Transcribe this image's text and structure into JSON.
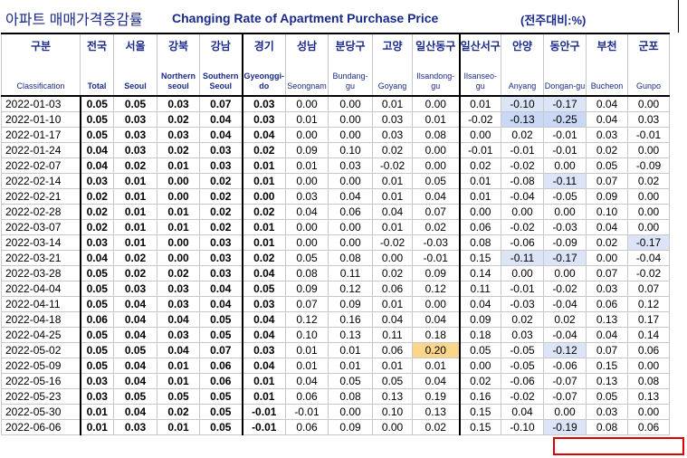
{
  "title": {
    "korean": "아파트 매매가격증감률",
    "english": "Changing Rate of Apartment Purchase Price",
    "unit": "(전주대비:%)"
  },
  "columns": [
    {
      "ko": "구분",
      "en": "Classification"
    },
    {
      "ko": "전국",
      "en": "Total"
    },
    {
      "ko": "서울",
      "en": "Seoul"
    },
    {
      "ko": "강북",
      "en": "Northern seoul"
    },
    {
      "ko": "강남",
      "en": "Southern Seoul"
    },
    {
      "ko": "경기",
      "en": "Gyeonggi-do"
    },
    {
      "ko": "성남",
      "en": "Seongnam"
    },
    {
      "ko": "분당구",
      "en": "Bundang-gu"
    },
    {
      "ko": "고양",
      "en": "Goyang"
    },
    {
      "ko": "일산동구",
      "en": "Ilsandong-gu"
    },
    {
      "ko": "일산서구",
      "en": "Ilsanseo-gu"
    },
    {
      "ko": "안양",
      "en": "Anyang"
    },
    {
      "ko": "동안구",
      "en": "Dongan-gu"
    },
    {
      "ko": "부천",
      "en": "Bucheon"
    },
    {
      "ko": "군포",
      "en": "Gunpo"
    }
  ],
  "rows": [
    {
      "date": "2022-01-03",
      "v": [
        "0.05",
        "0.05",
        "0.03",
        "0.07",
        "0.03",
        "0.00",
        "0.00",
        "0.01",
        "0.00",
        "0.01",
        "-0.10",
        "-0.17",
        "0.04",
        "0.00"
      ]
    },
    {
      "date": "2022-01-10",
      "v": [
        "0.05",
        "0.03",
        "0.02",
        "0.04",
        "0.03",
        "0.01",
        "0.00",
        "0.03",
        "0.01",
        "-0.02",
        "-0.13",
        "-0.25",
        "0.04",
        "0.03"
      ]
    },
    {
      "date": "2022-01-17",
      "v": [
        "0.05",
        "0.03",
        "0.03",
        "0.04",
        "0.04",
        "0.00",
        "0.00",
        "0.03",
        "0.08",
        "0.00",
        "0.02",
        "-0.01",
        "0.03",
        "-0.01"
      ]
    },
    {
      "date": "2022-01-24",
      "v": [
        "0.04",
        "0.03",
        "0.02",
        "0.03",
        "0.02",
        "0.09",
        "0.10",
        "0.02",
        "0.00",
        "-0.01",
        "-0.01",
        "-0.01",
        "0.02",
        "0.00"
      ]
    },
    {
      "date": "2022-02-07",
      "v": [
        "0.04",
        "0.02",
        "0.01",
        "0.03",
        "0.01",
        "0.01",
        "0.03",
        "-0.02",
        "0.00",
        "0.02",
        "-0.02",
        "0.00",
        "0.05",
        "-0.09"
      ]
    },
    {
      "date": "2022-02-14",
      "v": [
        "0.03",
        "0.01",
        "0.00",
        "0.02",
        "0.01",
        "0.00",
        "0.00",
        "0.01",
        "0.05",
        "0.01",
        "-0.08",
        "-0.11",
        "0.07",
        "0.02"
      ]
    },
    {
      "date": "2022-02-21",
      "v": [
        "0.02",
        "0.01",
        "0.00",
        "0.02",
        "0.00",
        "0.03",
        "0.04",
        "0.01",
        "0.04",
        "0.01",
        "-0.04",
        "-0.05",
        "0.09",
        "0.00"
      ]
    },
    {
      "date": "2022-02-28",
      "v": [
        "0.02",
        "0.01",
        "0.01",
        "0.02",
        "0.02",
        "0.04",
        "0.06",
        "0.04",
        "0.07",
        "0.00",
        "0.00",
        "0.00",
        "0.10",
        "0.00"
      ]
    },
    {
      "date": "2022-03-07",
      "v": [
        "0.02",
        "0.01",
        "0.01",
        "0.02",
        "0.01",
        "0.00",
        "0.00",
        "0.01",
        "0.02",
        "0.06",
        "-0.02",
        "-0.03",
        "0.04",
        "0.00"
      ]
    },
    {
      "date": "2022-03-14",
      "v": [
        "0.03",
        "0.01",
        "0.00",
        "0.03",
        "0.01",
        "0.00",
        "0.00",
        "-0.02",
        "-0.03",
        "0.08",
        "-0.06",
        "-0.09",
        "0.02",
        "-0.17"
      ]
    },
    {
      "date": "2022-03-21",
      "v": [
        "0.04",
        "0.02",
        "0.00",
        "0.03",
        "0.02",
        "0.05",
        "0.08",
        "0.00",
        "-0.01",
        "0.15",
        "-0.11",
        "-0.17",
        "0.00",
        "-0.04"
      ]
    },
    {
      "date": "2022-03-28",
      "v": [
        "0.05",
        "0.02",
        "0.02",
        "0.03",
        "0.04",
        "0.08",
        "0.11",
        "0.02",
        "0.09",
        "0.14",
        "0.00",
        "0.00",
        "0.07",
        "-0.02"
      ]
    },
    {
      "date": "2022-04-04",
      "v": [
        "0.05",
        "0.03",
        "0.03",
        "0.04",
        "0.05",
        "0.09",
        "0.12",
        "0.06",
        "0.12",
        "0.11",
        "-0.01",
        "-0.02",
        "0.03",
        "0.07"
      ]
    },
    {
      "date": "2022-04-11",
      "v": [
        "0.05",
        "0.04",
        "0.03",
        "0.04",
        "0.03",
        "0.07",
        "0.09",
        "0.01",
        "0.00",
        "0.04",
        "-0.03",
        "-0.04",
        "0.06",
        "0.12"
      ]
    },
    {
      "date": "2022-04-18",
      "v": [
        "0.06",
        "0.04",
        "0.04",
        "0.05",
        "0.04",
        "0.12",
        "0.16",
        "0.04",
        "0.04",
        "0.09",
        "0.02",
        "0.02",
        "0.13",
        "0.17"
      ]
    },
    {
      "date": "2022-04-25",
      "v": [
        "0.05",
        "0.04",
        "0.03",
        "0.05",
        "0.04",
        "0.10",
        "0.13",
        "0.11",
        "0.18",
        "0.18",
        "0.03",
        "-0.04",
        "0.04",
        "0.14"
      ]
    },
    {
      "date": "2022-05-02",
      "v": [
        "0.05",
        "0.05",
        "0.04",
        "0.07",
        "0.03",
        "0.01",
        "0.01",
        "0.06",
        "0.20",
        "0.05",
        "-0.05",
        "-0.12",
        "0.07",
        "0.06"
      ]
    },
    {
      "date": "2022-05-09",
      "v": [
        "0.05",
        "0.04",
        "0.01",
        "0.06",
        "0.04",
        "0.01",
        "0.01",
        "0.01",
        "0.01",
        "0.00",
        "-0.05",
        "-0.06",
        "0.15",
        "0.00"
      ]
    },
    {
      "date": "2022-05-16",
      "v": [
        "0.03",
        "0.04",
        "0.01",
        "0.06",
        "0.01",
        "0.04",
        "0.05",
        "0.05",
        "0.04",
        "0.02",
        "-0.06",
        "-0.07",
        "0.13",
        "0.08"
      ]
    },
    {
      "date": "2022-05-23",
      "v": [
        "0.03",
        "0.05",
        "0.05",
        "0.05",
        "0.01",
        "0.06",
        "0.08",
        "0.13",
        "0.19",
        "0.16",
        "-0.02",
        "-0.07",
        "0.05",
        "0.13"
      ]
    },
    {
      "date": "2022-05-30",
      "v": [
        "0.01",
        "0.04",
        "0.02",
        "0.05",
        "-0.01",
        "-0.01",
        "0.00",
        "0.10",
        "0.13",
        "0.15",
        "0.04",
        "0.00",
        "0.03",
        "0.00"
      ]
    },
    {
      "date": "2022-06-06",
      "v": [
        "0.01",
        "0.03",
        "0.01",
        "0.05",
        "-0.01",
        "0.06",
        "0.09",
        "0.00",
        "0.02",
        "0.15",
        "-0.10",
        "-0.19",
        "0.08",
        "0.06"
      ]
    }
  ],
  "highlights": {
    "0-10": "hl1",
    "0-11": "hl1",
    "1-10": "hl2",
    "1-11": "hl2",
    "5-11": "hl1",
    "9-13": "hl1",
    "10-10": "hl1",
    "10-11": "hl1",
    "16-8": "hlo",
    "16-11": "hl1",
    "21-11": "hl1"
  },
  "colors": {
    "header_text": "#1a2a8a",
    "highlight_blue": "#dbe5f7",
    "highlight_orange": "#fad68a",
    "callout_red": "#e00000"
  }
}
